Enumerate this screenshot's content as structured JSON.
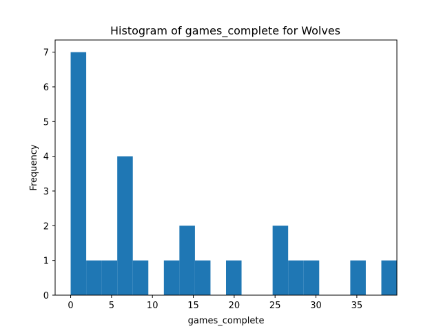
{
  "chart_data": {
    "type": "bar",
    "title": "Histogram of games_complete for Wolves",
    "xlabel": "games_complete",
    "ylabel": "Frequency",
    "bin_start": 0,
    "bin_width": 1.9,
    "values": [
      7,
      1,
      1,
      4,
      1,
      0,
      1,
      2,
      1,
      0,
      1,
      0,
      0,
      2,
      1,
      1,
      0,
      0,
      1,
      0,
      1
    ],
    "xlim": [
      -1.9,
      39.9
    ],
    "ylim": [
      0,
      7.35
    ],
    "xticks": [
      0,
      5,
      10,
      15,
      20,
      25,
      30,
      35
    ],
    "yticks": [
      0,
      1,
      2,
      3,
      4,
      5,
      6,
      7
    ],
    "grid": false,
    "colors": {
      "bar": "#1f77b4",
      "axis": "#000000"
    }
  }
}
